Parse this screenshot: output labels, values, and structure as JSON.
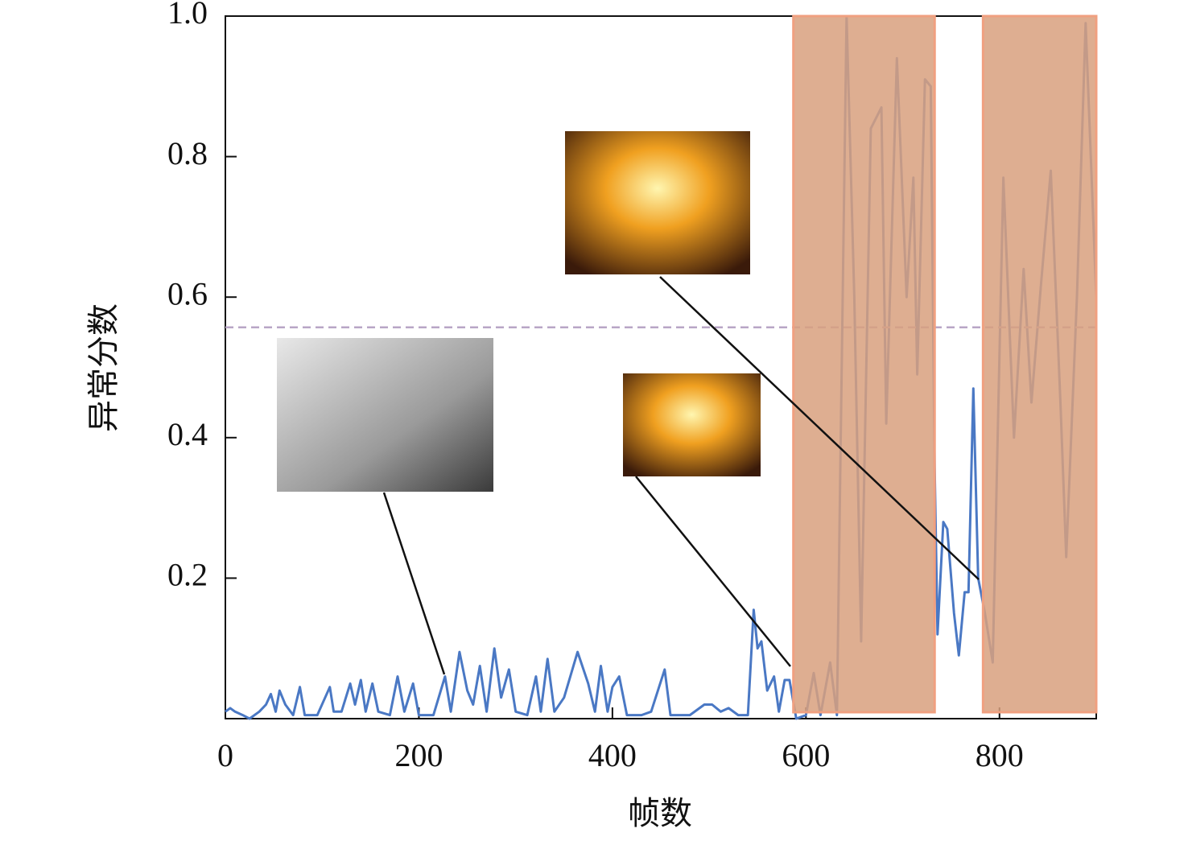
{
  "chart_data": {
    "type": "line",
    "x_label": "帧数",
    "y_label": "异常分数",
    "xlim": [
      0,
      900
    ],
    "ylim": [
      0,
      1
    ],
    "xticks": [
      0,
      200,
      400,
      600,
      800
    ],
    "yticks": [
      0.2,
      0.4,
      0.6,
      0.8,
      {
        "value": 1,
        "label": "1.0"
      }
    ],
    "threshold": 0.557,
    "threshold_color": "#b9a6c6",
    "shaded_ranges": [
      [
        587,
        733
      ],
      [
        783,
        900
      ]
    ],
    "shade_color": "#d8a07e",
    "series": [
      {
        "color": "#4a78c4",
        "x": [
          0,
          5,
          10,
          18,
          25,
          35,
          42,
          47,
          52,
          56,
          62,
          70,
          77,
          82,
          95,
          108,
          112,
          120,
          129,
          134,
          140,
          145,
          152,
          158,
          170,
          178,
          185,
          194,
          200,
          215,
          227,
          233,
          242,
          250,
          256,
          263,
          270,
          278,
          285,
          293,
          300,
          312,
          321,
          326,
          333,
          340,
          350,
          364,
          375,
          382,
          388,
          395,
          400,
          407,
          415,
          430,
          440,
          454,
          460,
          480,
          495,
          503,
          512,
          520,
          530,
          540,
          546,
          550,
          554,
          560,
          567,
          572,
          578,
          583,
          590,
          600,
          608,
          615,
          625,
          632,
          642,
          650,
          657,
          667,
          678,
          683,
          694,
          704,
          711,
          715,
          723,
          729,
          733,
          736,
          742,
          746,
          753,
          758,
          764,
          768,
          773,
          778,
          785,
          793,
          804,
          815,
          825,
          833,
          843,
          853,
          863,
          869,
          880,
          889,
          900
        ],
        "values": [
          0.01,
          0.015,
          0.01,
          0.005,
          0,
          0.01,
          0.02,
          0.035,
          0.01,
          0.04,
          0.02,
          0.005,
          0.045,
          0.005,
          0.005,
          0.045,
          0.01,
          0.01,
          0.05,
          0.02,
          0.055,
          0.01,
          0.05,
          0.01,
          0.005,
          0.06,
          0.01,
          0.05,
          0.005,
          0.005,
          0.06,
          0.01,
          0.095,
          0.04,
          0.02,
          0.075,
          0.01,
          0.1,
          0.03,
          0.07,
          0.01,
          0.005,
          0.06,
          0.01,
          0.085,
          0.01,
          0.03,
          0.095,
          0.05,
          0.01,
          0.075,
          0.01,
          0.045,
          0.06,
          0.005,
          0.005,
          0.01,
          0.07,
          0.005,
          0.005,
          0.02,
          0.02,
          0.01,
          0.015,
          0.005,
          0.005,
          0.155,
          0.1,
          0.11,
          0.04,
          0.06,
          0.01,
          0.055,
          0.055,
          0,
          0.005,
          0.065,
          0.005,
          0.08,
          0.005,
          1.0,
          0.6,
          0.11,
          0.84,
          0.87,
          0.42,
          0.94,
          0.6,
          0.77,
          0.49,
          0.91,
          0.9,
          0.36,
          0.12,
          0.28,
          0.27,
          0.15,
          0.09,
          0.18,
          0.18,
          0.47,
          0.2,
          0.15,
          0.08,
          0.77,
          0.4,
          0.64,
          0.45,
          0.62,
          0.78,
          0.45,
          0.23,
          0.6,
          0.99,
          0.6
        ]
      }
    ]
  }
}
